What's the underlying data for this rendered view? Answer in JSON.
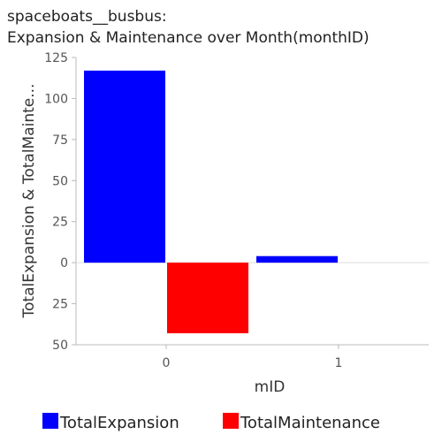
{
  "chart_data": {
    "type": "bar",
    "title_line1": "spaceboats__busbus:",
    "title_line2": "Expansion & Maintenance over Month(monthID)",
    "xlabel": "mID",
    "ylabel": "TotalExpansion & TotalMainte...",
    "categories": [
      "0",
      "1"
    ],
    "series": [
      {
        "name": "TotalExpansion",
        "color": "#0000ff",
        "values": [
          117,
          4
        ],
        "direction": "up"
      },
      {
        "name": "TotalMaintenance",
        "color": "#ff0000",
        "values": [
          43,
          0
        ],
        "direction": "down"
      }
    ],
    "ylim": [
      -50,
      125
    ],
    "y_ticks": [
      {
        "value": 125,
        "label": "125"
      },
      {
        "value": 100,
        "label": "100"
      },
      {
        "value": 75,
        "label": "75"
      },
      {
        "value": 50,
        "label": "50"
      },
      {
        "value": 25,
        "label": "25"
      },
      {
        "value": 0,
        "label": "0"
      },
      {
        "value": -25,
        "label": "25"
      },
      {
        "value": -50,
        "label": "50"
      }
    ],
    "grid": false,
    "legend_position": "bottom"
  }
}
